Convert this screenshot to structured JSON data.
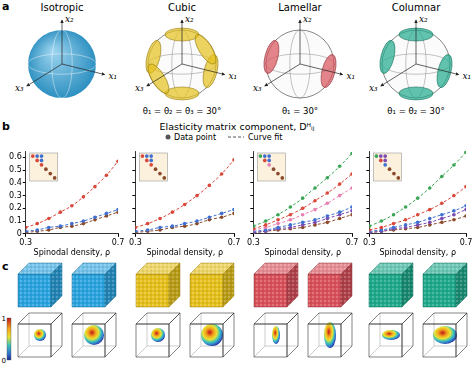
{
  "figure": {
    "panel_a": {
      "label": "a",
      "axis_labels": [
        "x₁",
        "x₂",
        "x₃"
      ],
      "items": [
        {
          "title": "Isotropic",
          "color": "#2ba3de"
        },
        {
          "title": "Cubic",
          "color": "#e5c01c",
          "angles": [
            30,
            30,
            30
          ],
          "angle_label": "θ₁ = θ₂ = θ₃ = 30°"
        },
        {
          "title": "Lamellar",
          "color": "#d8505a",
          "angles": [
            30
          ],
          "angle_label": "θ₁ = 30°"
        },
        {
          "title": "Columnar",
          "color": "#1fa98b",
          "angles": [
            30,
            30
          ],
          "angle_label": "θ₁ = θ₂ = 30°"
        }
      ]
    },
    "panel_b": {
      "label": "b",
      "title": "Elasticity matrix component, Dᴴᵢⱼ",
      "legend_labels": [
        "Data point",
        "Curve fit"
      ]
    },
    "panel_c": {
      "label": "c",
      "colors": [
        "#2ba3de",
        "#2ba3de",
        "#e5c01c",
        "#e5c01c",
        "#d8505a",
        "#d8505a",
        "#1fa98b",
        "#1fa98b"
      ],
      "colorbar": {
        "range": [
          0,
          1
        ],
        "ticks": [
          0,
          1
        ]
      }
    }
  },
  "chart_data": [
    {
      "type": "line",
      "x_label": "Spinodal density, ρ",
      "x": [
        0.3,
        0.35,
        0.4,
        0.45,
        0.5,
        0.55,
        0.6,
        0.65,
        0.7
      ],
      "xlim": [
        0.3,
        0.7
      ],
      "xticks": [
        0.3,
        0.7
      ],
      "ylim": [
        0,
        0.65
      ],
      "yticks": [
        0,
        0.1,
        0.2,
        0.3,
        0.4,
        0.5,
        0.6
      ],
      "grid": false,
      "tick_labels": true,
      "marker": "circle",
      "line_style": "dashed",
      "series": [
        {
          "color": "#d9483b",
          "values": [
            0.05,
            0.08,
            0.12,
            0.17,
            0.22,
            0.29,
            0.37,
            0.46,
            0.57
          ]
        },
        {
          "color": "#3f6fd1",
          "values": [
            0.02,
            0.03,
            0.05,
            0.06,
            0.08,
            0.1,
            0.13,
            0.16,
            0.19
          ]
        },
        {
          "color": "#8b4a2b",
          "values": [
            0.01,
            0.02,
            0.03,
            0.05,
            0.06,
            0.08,
            0.11,
            0.14,
            0.17
          ]
        }
      ]
    },
    {
      "type": "line",
      "x_label": "Spinodal density, ρ",
      "x": [
        0.3,
        0.35,
        0.4,
        0.45,
        0.5,
        0.55,
        0.6,
        0.65,
        0.7
      ],
      "xlim": [
        0.3,
        0.7
      ],
      "xticks": [
        0.3,
        0.7
      ],
      "ylim": [
        0,
        0.65
      ],
      "yticks": [
        0,
        0.1,
        0.2,
        0.3,
        0.4,
        0.5,
        0.6
      ],
      "grid": false,
      "tick_labels": "x",
      "marker": "circle",
      "line_style": "dashed",
      "series": [
        {
          "color": "#d9483b",
          "values": [
            0.05,
            0.08,
            0.12,
            0.17,
            0.23,
            0.3,
            0.38,
            0.47,
            0.58
          ]
        },
        {
          "color": "#3f6fd1",
          "values": [
            0.02,
            0.03,
            0.05,
            0.06,
            0.08,
            0.1,
            0.13,
            0.16,
            0.19
          ]
        },
        {
          "color": "#8b4a2b",
          "values": [
            0.01,
            0.02,
            0.03,
            0.05,
            0.06,
            0.08,
            0.11,
            0.13,
            0.16
          ]
        }
      ]
    },
    {
      "type": "line",
      "x_label": "Spinodal density, ρ",
      "x": [
        0.3,
        0.35,
        0.4,
        0.45,
        0.5,
        0.55,
        0.6,
        0.65,
        0.7
      ],
      "xlim": [
        0.3,
        0.7
      ],
      "xticks": [
        0.3,
        0.7
      ],
      "ylim": [
        0,
        0.65
      ],
      "yticks": [
        0,
        0.1,
        0.2,
        0.3,
        0.4,
        0.5,
        0.6
      ],
      "grid": false,
      "tick_labels": "x",
      "marker": "circle",
      "line_style": "dashed",
      "series": [
        {
          "color": "#3aa655",
          "values": [
            0.06,
            0.1,
            0.15,
            0.21,
            0.28,
            0.36,
            0.44,
            0.53,
            0.63
          ]
        },
        {
          "color": "#d9483b",
          "values": [
            0.04,
            0.07,
            0.11,
            0.15,
            0.2,
            0.26,
            0.32,
            0.39,
            0.47
          ]
        },
        {
          "color": "#e77fb0",
          "values": [
            0.03,
            0.05,
            0.08,
            0.11,
            0.15,
            0.19,
            0.24,
            0.3,
            0.36
          ]
        },
        {
          "color": "#3f6fd1",
          "values": [
            0.02,
            0.03,
            0.05,
            0.07,
            0.09,
            0.11,
            0.14,
            0.17,
            0.21
          ]
        },
        {
          "color": "#7b4bb0",
          "values": [
            0.01,
            0.02,
            0.04,
            0.05,
            0.07,
            0.09,
            0.12,
            0.15,
            0.18
          ]
        },
        {
          "color": "#8b4a2b",
          "values": [
            0.01,
            0.02,
            0.03,
            0.04,
            0.05,
            0.07,
            0.09,
            0.12,
            0.15
          ]
        }
      ]
    },
    {
      "type": "line",
      "x_label": "Spinodal density, ρ",
      "x": [
        0.3,
        0.35,
        0.4,
        0.45,
        0.5,
        0.55,
        0.6,
        0.65,
        0.7
      ],
      "xlim": [
        0.3,
        0.7
      ],
      "xticks": [
        0.3,
        0.7
      ],
      "ylim": [
        0,
        0.65
      ],
      "yticks": [
        0,
        0.1,
        0.2,
        0.3,
        0.4,
        0.5,
        0.6
      ],
      "grid": false,
      "tick_labels": "x",
      "marker": "circle",
      "line_style": "dashed",
      "series": [
        {
          "color": "#3aa655",
          "values": [
            0.06,
            0.1,
            0.15,
            0.21,
            0.28,
            0.36,
            0.45,
            0.54,
            0.64
          ]
        },
        {
          "color": "#d9483b",
          "values": [
            0.03,
            0.05,
            0.08,
            0.11,
            0.15,
            0.19,
            0.24,
            0.3,
            0.37
          ]
        },
        {
          "color": "#3f6fd1",
          "values": [
            0.02,
            0.03,
            0.05,
            0.07,
            0.09,
            0.12,
            0.15,
            0.18,
            0.22
          ]
        },
        {
          "color": "#7b4bb0",
          "values": [
            0.01,
            0.02,
            0.04,
            0.05,
            0.07,
            0.09,
            0.12,
            0.15,
            0.19
          ]
        },
        {
          "color": "#8b4a2b",
          "values": [
            0.01,
            0.02,
            0.03,
            0.04,
            0.05,
            0.07,
            0.09,
            0.11,
            0.14
          ]
        }
      ]
    }
  ]
}
